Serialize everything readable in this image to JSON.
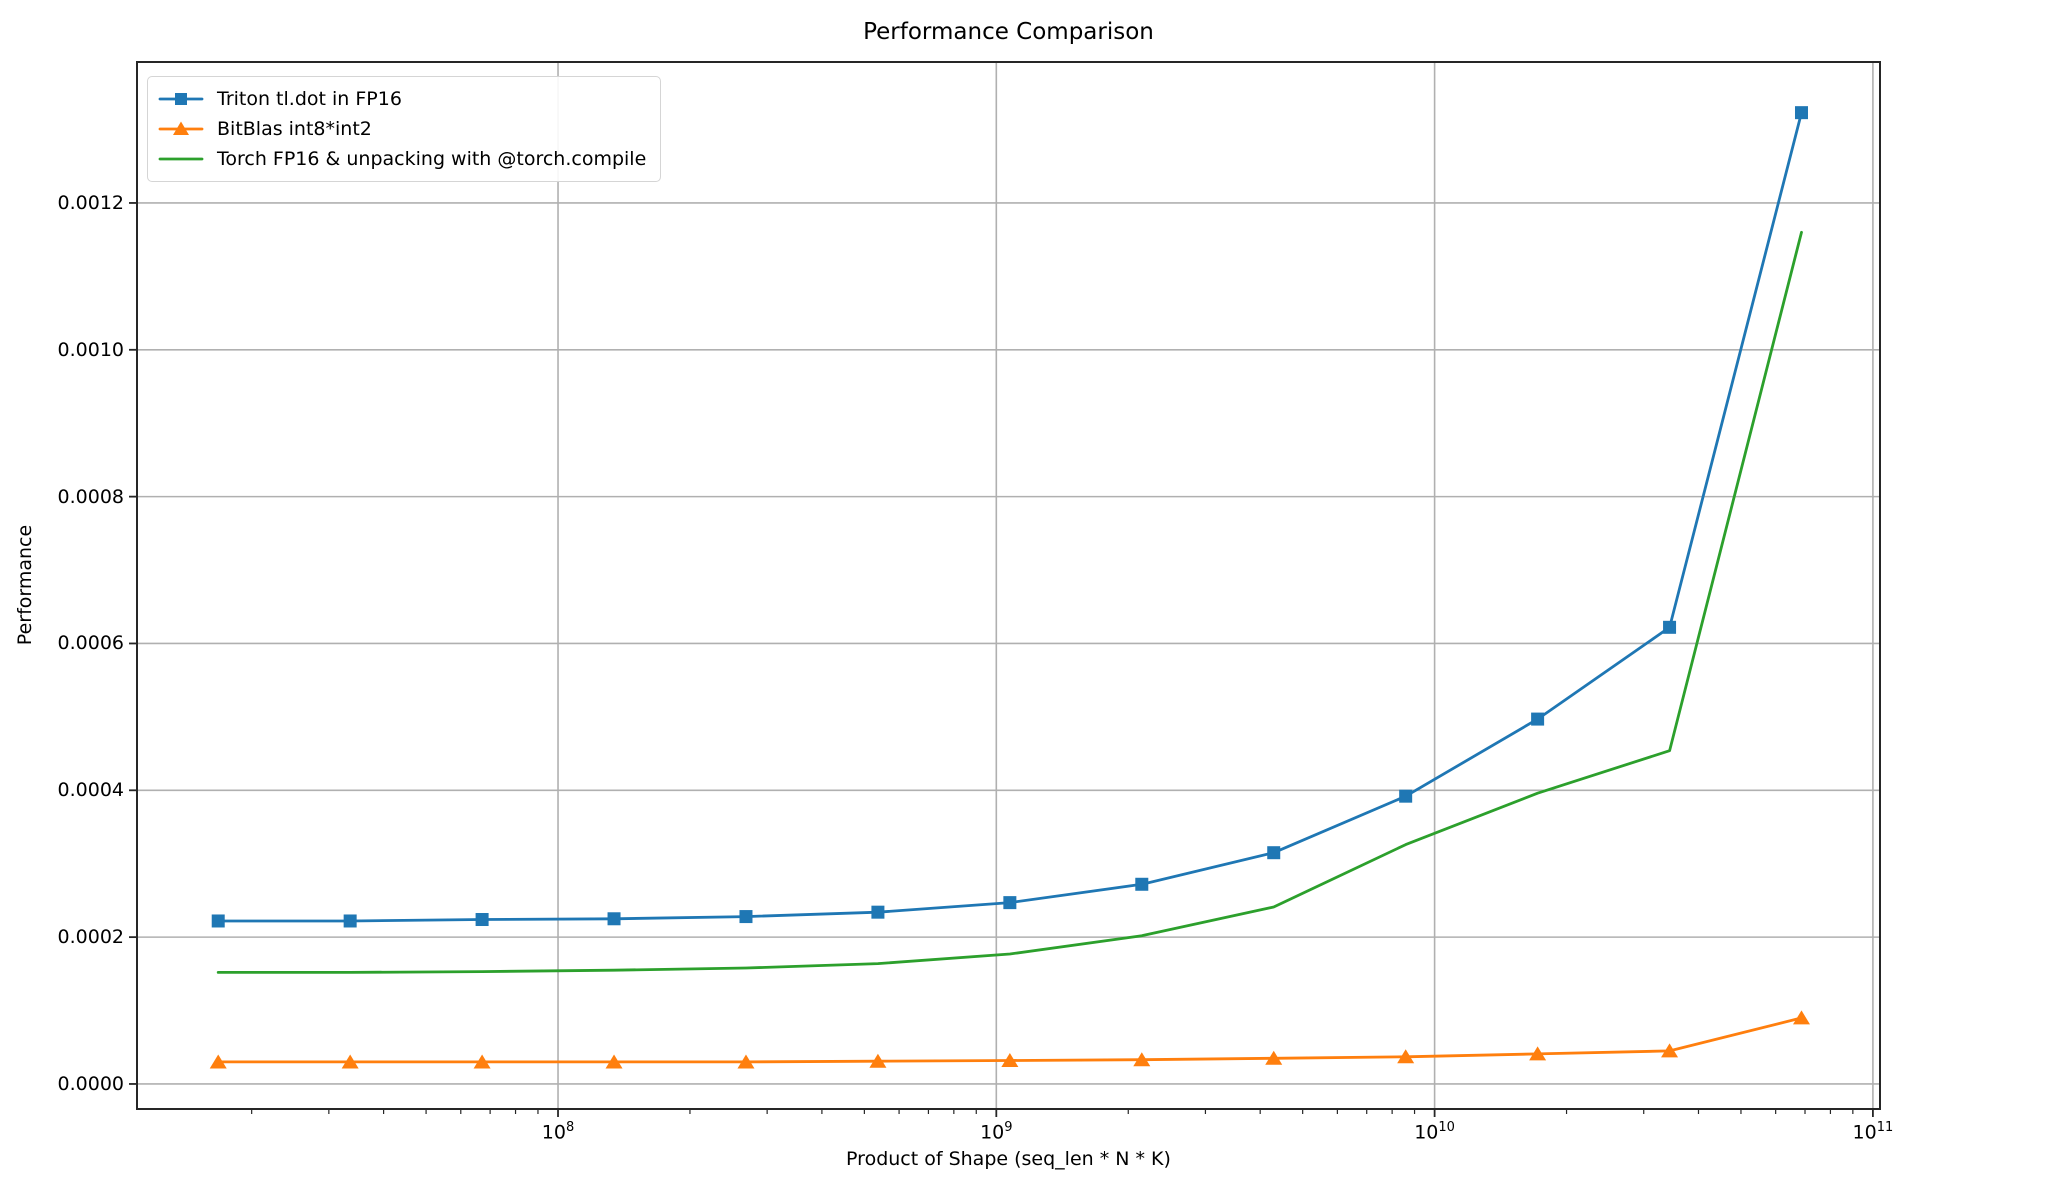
{
  "chart_data": {
    "type": "line",
    "title": "Performance Comparison",
    "xlabel": "Product of Shape (seq_len * N * K)",
    "ylabel": "Performance",
    "xscale": "log",
    "grid": true,
    "legend_position": "upper left",
    "x": [
      16777216,
      33554432,
      67108864,
      134217728,
      268435456,
      536870912,
      1073741824,
      2147483648,
      4294967296,
      8589934592,
      17179869184,
      34359738368,
      68719476736
    ],
    "series": [
      {
        "name": "Triton tl.dot in FP16",
        "color": "#1f77b4",
        "marker": "square",
        "values": [
          0.000222,
          0.000222,
          0.000224,
          0.000225,
          0.000228,
          0.000234,
          0.000247,
          0.000272,
          0.000315,
          0.000392,
          0.000497,
          0.000622,
          0.001323
        ]
      },
      {
        "name": "BitBlas int8*int2",
        "color": "#ff7f0e",
        "marker": "triangle-up",
        "values": [
          3e-05,
          3e-05,
          3e-05,
          3e-05,
          3e-05,
          3.1e-05,
          3.2e-05,
          3.3e-05,
          3.5e-05,
          3.7e-05,
          4.1e-05,
          4.5e-05,
          9e-05
        ]
      },
      {
        "name": "Torch FP16 & unpacking with @torch.compile",
        "color": "#2ca02c",
        "marker": "none",
        "values": [
          0.000152,
          0.000152,
          0.000153,
          0.000155,
          0.000158,
          0.000164,
          0.000177,
          0.000202,
          0.000241,
          0.000326,
          0.000396,
          0.000454,
          0.00116
        ]
      }
    ],
    "xlim": [
      10950000,
      103800000000
    ],
    "ylim": [
      -3.41e-05,
      0.001392
    ],
    "xticks": [
      {
        "label_base": "10",
        "label_exp": "8",
        "value": 100000000
      },
      {
        "label_base": "10",
        "label_exp": "9",
        "value": 1000000000
      },
      {
        "label_base": "10",
        "label_exp": "10",
        "value": 10000000000
      },
      {
        "label_base": "10",
        "label_exp": "11",
        "value": 100000000000
      }
    ],
    "yticks": [
      {
        "label": "0.0000",
        "value": 0.0
      },
      {
        "label": "0.0002",
        "value": 0.0002
      },
      {
        "label": "0.0004",
        "value": 0.0004
      },
      {
        "label": "0.0006",
        "value": 0.0006
      },
      {
        "label": "0.0008",
        "value": 0.0008
      },
      {
        "label": "0.0010",
        "value": 0.001
      },
      {
        "label": "0.0012",
        "value": 0.0012
      }
    ],
    "colors": {
      "grid": "#b0b0b0",
      "axis": "#262626",
      "text": "#000000",
      "background": "#ffffff"
    }
  }
}
